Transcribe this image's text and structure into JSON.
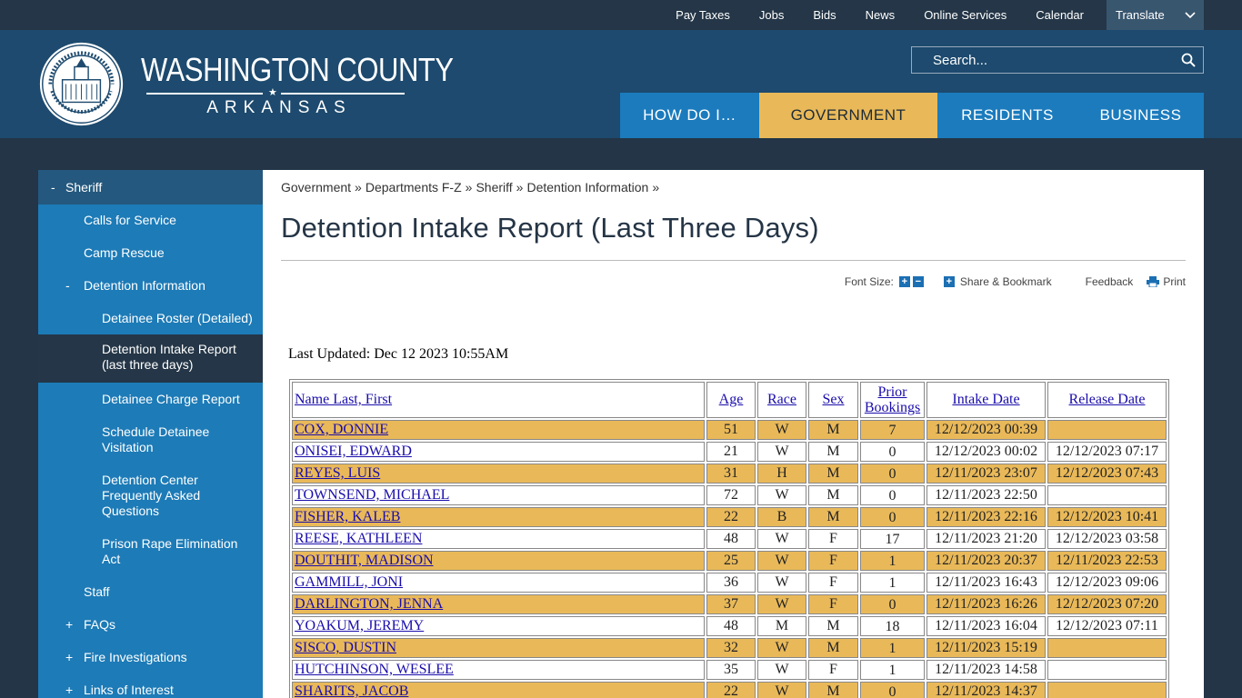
{
  "top_links": [
    "Pay Taxes",
    "Jobs",
    "Bids",
    "News",
    "Online Services",
    "Calendar"
  ],
  "translate_label": "Translate",
  "logo": {
    "main": "WASHINGTON COUNTY",
    "sub": "ARKANSAS"
  },
  "search": {
    "placeholder": "Search..."
  },
  "main_nav": [
    {
      "label": "HOW DO I…",
      "active": false
    },
    {
      "label": "GOVERNMENT",
      "active": true
    },
    {
      "label": "RESIDENTS",
      "active": false
    },
    {
      "label": "BUSINESS",
      "active": false
    }
  ],
  "sidebar": {
    "head": {
      "toggle": "-",
      "label": "Sheriff"
    },
    "items": [
      {
        "level": 1,
        "toggle": "",
        "label": "Calls for Service"
      },
      {
        "level": 1,
        "toggle": "",
        "label": "Camp Rescue"
      },
      {
        "level": 1,
        "toggle": "-",
        "label": "Detention Information"
      },
      {
        "level": 2,
        "toggle": "",
        "label": "Detainee Roster (Detailed)"
      },
      {
        "level": 2,
        "toggle": "",
        "label": "Detention Intake Report (last three days)",
        "current": true
      },
      {
        "level": 2,
        "toggle": "",
        "label": "Detainee Charge Report"
      },
      {
        "level": 2,
        "toggle": "",
        "label": "Schedule Detainee Visitation"
      },
      {
        "level": 2,
        "toggle": "",
        "label": "Detention Center Frequently Asked Questions"
      },
      {
        "level": 2,
        "toggle": "",
        "label": "Prison Rape Elimination Act"
      },
      {
        "level": 1,
        "toggle": "",
        "label": "Staff"
      },
      {
        "level": 1,
        "toggle": "+",
        "label": "FAQs"
      },
      {
        "level": 1,
        "toggle": "+",
        "label": "Fire Investigations"
      },
      {
        "level": 1,
        "toggle": "+",
        "label": "Links of Interest"
      }
    ]
  },
  "breadcrumb": [
    "Government",
    "Departments F-Z",
    "Sheriff",
    "Detention Information"
  ],
  "breadcrumb_sep": "»",
  "page_title": "Detention Intake Report (Last Three Days)",
  "tools": {
    "font_size": "Font Size:",
    "share": "Share & Bookmark",
    "feedback": "Feedback",
    "print": "Print"
  },
  "last_updated": "Last Updated: Dec 12 2023 10:55AM",
  "table": {
    "headers": {
      "name": "Name Last, First",
      "age": "Age",
      "race": "Race",
      "sex": "Sex",
      "prior_1": "Prior",
      "prior_2": "Bookings",
      "intake": "Intake Date",
      "release": "Release Date"
    },
    "rows": [
      {
        "name": "COX, DONNIE ",
        "age": "51",
        "race": "W",
        "sex": "M",
        "prior": "7",
        "intake": "12/12/2023 00:39",
        "release": ""
      },
      {
        "name": "ONISEI, EDWARD ",
        "age": "21",
        "race": "W",
        "sex": "M",
        "prior": "0",
        "intake": "12/12/2023 00:02",
        "release": "12/12/2023 07:17"
      },
      {
        "name": "REYES, LUIS ",
        "age": "31",
        "race": "H",
        "sex": "M",
        "prior": "0",
        "intake": "12/11/2023 23:07",
        "release": "12/12/2023 07:43"
      },
      {
        "name": "TOWNSEND, MICHAEL ",
        "age": "72",
        "race": "W",
        "sex": "M",
        "prior": "0",
        "intake": "12/11/2023 22:50",
        "release": ""
      },
      {
        "name": "FISHER, KALEB ",
        "age": "22",
        "race": "B",
        "sex": "M",
        "prior": "0",
        "intake": "12/11/2023 22:16",
        "release": "12/12/2023 10:41"
      },
      {
        "name": "REESE, KATHLEEN ",
        "age": "48",
        "race": "W",
        "sex": "F",
        "prior": "17",
        "intake": "12/11/2023 21:20",
        "release": "12/12/2023 03:58"
      },
      {
        "name": "DOUTHIT, MADISON ",
        "age": "25",
        "race": "W",
        "sex": "F",
        "prior": "1",
        "intake": "12/11/2023 20:37",
        "release": "12/11/2023 22:53"
      },
      {
        "name": "GAMMILL, JONI ",
        "age": "36",
        "race": "W",
        "sex": "F",
        "prior": "1",
        "intake": "12/11/2023 16:43",
        "release": "12/12/2023 09:06"
      },
      {
        "name": "DARLINGTON, JENNA ",
        "age": "37",
        "race": "W",
        "sex": "F",
        "prior": "0",
        "intake": "12/11/2023 16:26",
        "release": "12/12/2023 07:20"
      },
      {
        "name": "YOAKUM, JEREMY ",
        "age": "48",
        "race": "M",
        "sex": "M",
        "prior": "18",
        "intake": "12/11/2023 16:04",
        "release": "12/12/2023 07:11"
      },
      {
        "name": "SISCO, DUSTIN ",
        "age": "32",
        "race": "W",
        "sex": "M",
        "prior": "1",
        "intake": "12/11/2023 15:19",
        "release": ""
      },
      {
        "name": "HUTCHINSON, WESLEE ",
        "age": "35",
        "race": "W",
        "sex": "F",
        "prior": "1",
        "intake": "12/11/2023 14:58",
        "release": ""
      },
      {
        "name": "SHARITS, JACOB ",
        "age": "22",
        "race": "W",
        "sex": "M",
        "prior": "0",
        "intake": "12/11/2023 14:37",
        "release": ""
      }
    ]
  },
  "colors": {
    "header_bg": "#1d4a6e",
    "nav_blue": "#1b7bbd",
    "accent_gold": "#e9b959",
    "sidebar_blue": "#1d7bb7"
  },
  "icons": {
    "search": "magnifier-icon",
    "translate": "chevron-down-icon",
    "print": "printer-icon",
    "share": "plus-box-icon"
  }
}
